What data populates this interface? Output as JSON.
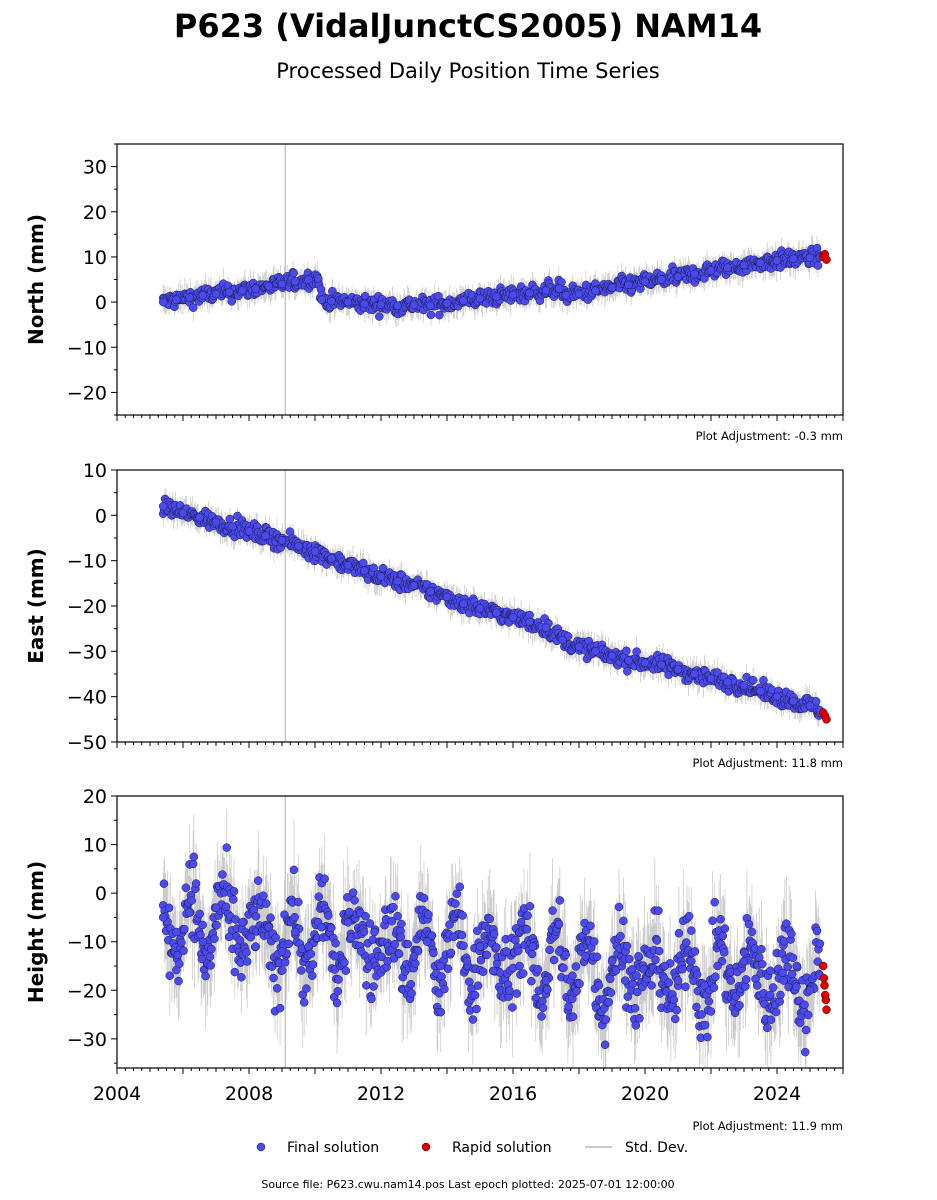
{
  "figure": {
    "title": "P623 (VidalJunctCS2005) NAM14",
    "subtitle": "Processed Daily Position Time Series",
    "source": "Source file: P623.cwu.nam14.pos  Last epoch plotted: 2025-07-01 12:00:00",
    "legend": {
      "placement": "bottom-center",
      "items": [
        {
          "label": "Final solution",
          "kind": "marker",
          "color": "#4a4af0"
        },
        {
          "label": "Rapid solution",
          "kind": "marker",
          "color": "#e00000"
        },
        {
          "label": "Std. Dev.",
          "kind": "line",
          "color": "#c8c8c8"
        }
      ]
    },
    "colors": {
      "final": "#4a4af0",
      "rapid": "#e00000",
      "stddev": "#aaaaaa",
      "event_line": "#c8c8c8"
    }
  },
  "chart_data": [
    {
      "type": "scatter",
      "ylabel": "North (mm)",
      "ylim": [
        -25,
        35
      ],
      "yticks": [
        -20,
        -10,
        0,
        10,
        20,
        30
      ],
      "xlim": [
        2004.0,
        2026.0
      ],
      "event_line_x": 2009.1,
      "adjustment": "Plot Adjustment: -0.3 mm",
      "x_tick_labels_shown": false,
      "series": [
        {
          "name": "Final solution",
          "x": [
            2005.4,
            2005.8,
            2006.2,
            2006.6,
            2007.0,
            2007.4,
            2007.8,
            2008.2,
            2008.6,
            2009.0,
            2009.4,
            2009.8,
            2010.1,
            2010.2,
            2010.5,
            2011.0,
            2011.5,
            2012.0,
            2012.5,
            2013.0,
            2013.5,
            2014.0,
            2014.5,
            2015.0,
            2015.5,
            2016.0,
            2016.5,
            2017.0,
            2017.4,
            2017.6,
            2018.0,
            2018.5,
            2019.0,
            2019.5,
            2020.0,
            2020.5,
            2021.0,
            2021.5,
            2022.0,
            2022.5,
            2023.0,
            2023.5,
            2024.0,
            2024.5,
            2025.0,
            2025.3
          ],
          "y": [
            0.0,
            0.5,
            1.0,
            1.5,
            1.8,
            2.2,
            2.6,
            3.0,
            3.5,
            4.0,
            4.6,
            5.0,
            5.2,
            0.5,
            0.2,
            0.0,
            -0.4,
            -0.6,
            -0.8,
            -0.6,
            -0.8,
            -0.3,
            0.3,
            0.8,
            1.2,
            1.6,
            2.0,
            2.6,
            3.0,
            1.5,
            1.8,
            2.5,
            3.2,
            3.8,
            4.5,
            5.0,
            5.6,
            6.2,
            7.0,
            7.6,
            8.2,
            8.7,
            9.2,
            9.6,
            9.8,
            9.9
          ]
        },
        {
          "name": "Rapid solution",
          "x": [
            2025.4,
            2025.45,
            2025.5
          ],
          "y": [
            10.0,
            10.6,
            9.4
          ]
        }
      ]
    },
    {
      "type": "scatter",
      "ylabel": "East (mm)",
      "ylim": [
        -50,
        10
      ],
      "yticks": [
        -50,
        -40,
        -30,
        -20,
        -10,
        0,
        10
      ],
      "xlim": [
        2004.0,
        2026.0
      ],
      "event_line_x": 2009.1,
      "adjustment": "Plot Adjustment: 11.8 mm",
      "x_tick_labels_shown": false,
      "series": [
        {
          "name": "Final solution",
          "x": [
            2005.4,
            2006.0,
            2006.5,
            2007.0,
            2007.5,
            2008.0,
            2008.5,
            2009.0,
            2009.5,
            2010.0,
            2010.5,
            2011.0,
            2011.5,
            2012.0,
            2012.5,
            2013.0,
            2013.5,
            2014.0,
            2014.5,
            2015.0,
            2015.5,
            2016.0,
            2016.5,
            2017.0,
            2017.5,
            2018.0,
            2018.5,
            2019.0,
            2019.5,
            2020.0,
            2020.5,
            2021.0,
            2021.5,
            2022.0,
            2022.5,
            2023.0,
            2023.5,
            2024.0,
            2024.5,
            2025.0,
            2025.3
          ],
          "y": [
            2.0,
            0.5,
            -0.5,
            -1.5,
            -2.5,
            -3.5,
            -4.5,
            -5.5,
            -6.8,
            -8.0,
            -9.5,
            -11.0,
            -12.2,
            -13.5,
            -14.5,
            -15.5,
            -16.8,
            -18.0,
            -19.5,
            -20.5,
            -21.5,
            -22.5,
            -23.5,
            -24.8,
            -27.5,
            -29.0,
            -30.0,
            -31.0,
            -32.0,
            -32.5,
            -33.0,
            -34.0,
            -35.0,
            -36.0,
            -36.8,
            -37.5,
            -38.8,
            -40.0,
            -41.0,
            -42.0,
            -43.0
          ]
        },
        {
          "name": "Rapid solution",
          "x": [
            2025.4,
            2025.45,
            2025.5
          ],
          "y": [
            -43.5,
            -44.2,
            -45.0
          ]
        }
      ]
    },
    {
      "type": "scatter",
      "ylabel": "Height (mm)",
      "ylim": [
        -36,
        20
      ],
      "yticks": [
        -30,
        -20,
        -10,
        0,
        10,
        20
      ],
      "xlim": [
        2004.0,
        2026.0
      ],
      "event_line_x": 2009.1,
      "adjustment": "Plot Adjustment: 11.9 mm",
      "x_tick_labels_shown": true,
      "xticks": [
        2004,
        2008,
        2012,
        2016,
        2020,
        2024
      ],
      "series": [
        {
          "name": "Final solution",
          "x": [
            2005.4,
            2005.8,
            2006.2,
            2006.6,
            2007.0,
            2007.4,
            2007.8,
            2008.2,
            2008.6,
            2009.0,
            2009.4,
            2009.8,
            2010.2,
            2010.6,
            2011.0,
            2011.4,
            2011.8,
            2012.2,
            2012.6,
            2013.0,
            2013.4,
            2013.8,
            2014.2,
            2014.6,
            2015.0,
            2015.4,
            2015.8,
            2016.2,
            2016.6,
            2017.0,
            2017.4,
            2017.8,
            2018.2,
            2018.6,
            2019.0,
            2019.4,
            2019.8,
            2020.2,
            2020.6,
            2021.0,
            2021.4,
            2021.8,
            2022.2,
            2022.6,
            2023.0,
            2023.4,
            2023.8,
            2024.2,
            2024.6,
            2025.0,
            2025.3
          ],
          "y": [
            -5.0,
            -8.0,
            -4.0,
            -10.0,
            -3.0,
            -9.0,
            -6.0,
            -11.0,
            -7.0,
            -12.0,
            -8.0,
            -11.0,
            -7.0,
            -13.0,
            -6.0,
            -12.0,
            -8.0,
            -14.0,
            -9.0,
            -13.0,
            -10.0,
            -15.0,
            -9.0,
            -14.0,
            -11.0,
            -16.0,
            -12.0,
            -15.0,
            -11.0,
            -18.0,
            -12.0,
            -17.0,
            -13.0,
            -19.0,
            -14.0,
            -18.0,
            -13.0,
            -19.0,
            -15.0,
            -18.0,
            -14.0,
            -19.0,
            -15.0,
            -18.0,
            -14.0,
            -19.0,
            -16.0,
            -18.0,
            -15.0,
            -20.0,
            -17.0
          ]
        },
        {
          "name": "Rapid solution",
          "x": [
            2025.4,
            2025.42,
            2025.44,
            2025.46,
            2025.48,
            2025.5
          ],
          "y": [
            -15.0,
            -17.5,
            -19.0,
            -21.0,
            -22.0,
            -24.0
          ]
        }
      ]
    }
  ]
}
